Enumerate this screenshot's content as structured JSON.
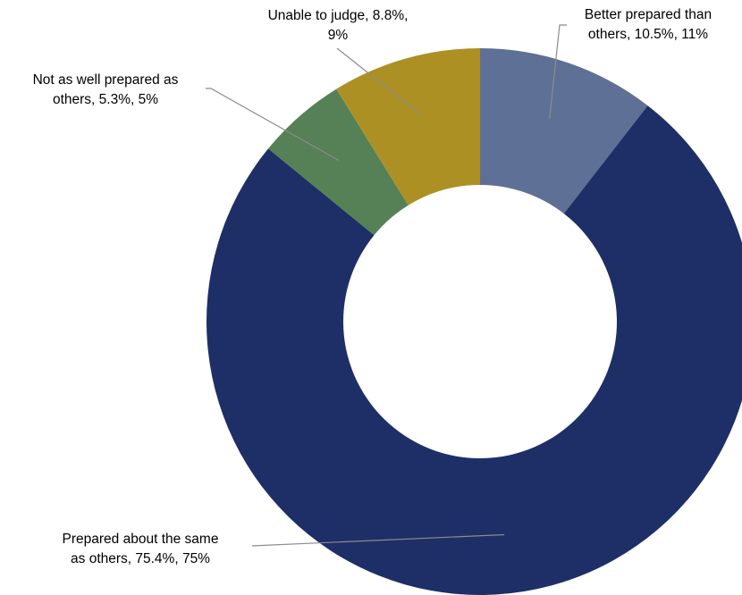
{
  "chart_data": {
    "type": "pie",
    "donut": true,
    "title": "",
    "legend": "none",
    "series": [
      {
        "categories": [
          "Better prepared than others",
          "Prepared about the same as others",
          "Not as well prepared as others",
          "Unable to judge"
        ],
        "values": [
          10.5,
          75.4,
          5.3,
          8.8
        ],
        "rounded_values": [
          11,
          75,
          5,
          9
        ],
        "colors": [
          "#5e7095",
          "#1d2f66",
          "#568055",
          "#ad9024"
        ],
        "labels": [
          [
            "Better prepared than",
            "others, 10.5%, 11%"
          ],
          [
            "Prepared about the same",
            "as others, 75.4%, 75%"
          ],
          [
            "Not as well prepared as",
            "others, 5.3%, 5%"
          ],
          [
            "Unable to judge, 8.8%,",
            "9%"
          ]
        ]
      }
    ]
  }
}
